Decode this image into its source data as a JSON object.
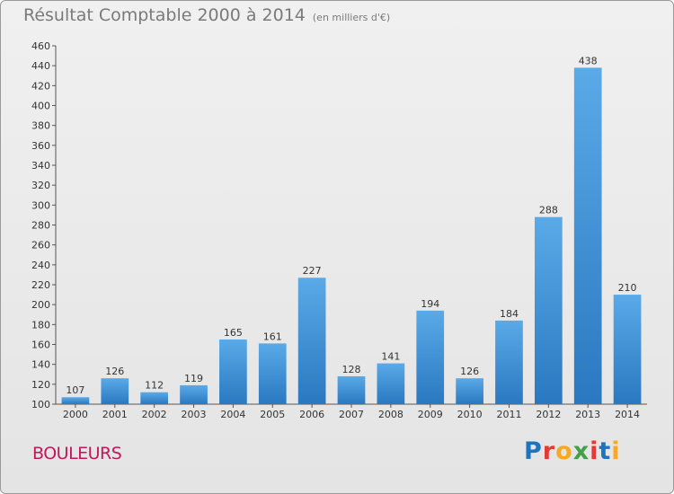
{
  "title": "Résultat Comptable 2000 à 2014",
  "subtitle": "(en milliers d'€)",
  "commune": "BOULEURS",
  "logo": {
    "letters": [
      "P",
      "r",
      "o",
      "x",
      "i",
      "t",
      "i"
    ],
    "colors": [
      "#1e73be",
      "#e53935",
      "#f9a825",
      "#43a047",
      "#e53935",
      "#1e73be",
      "#f9a825"
    ]
  },
  "chart_data": {
    "type": "bar",
    "title": "Résultat Comptable 2000 à 2014",
    "subtitle": "(en milliers d'€)",
    "xlabel": "",
    "ylabel": "",
    "categories": [
      "2000",
      "2001",
      "2002",
      "2003",
      "2004",
      "2005",
      "2006",
      "2007",
      "2008",
      "2009",
      "2010",
      "2011",
      "2012",
      "2013",
      "2014"
    ],
    "values": [
      107,
      126,
      112,
      119,
      165,
      161,
      227,
      128,
      141,
      194,
      126,
      184,
      288,
      438,
      210
    ],
    "ylim": [
      100,
      460
    ],
    "ytick_step": 20,
    "grid": false,
    "bar_color": "#3a8fd6"
  }
}
